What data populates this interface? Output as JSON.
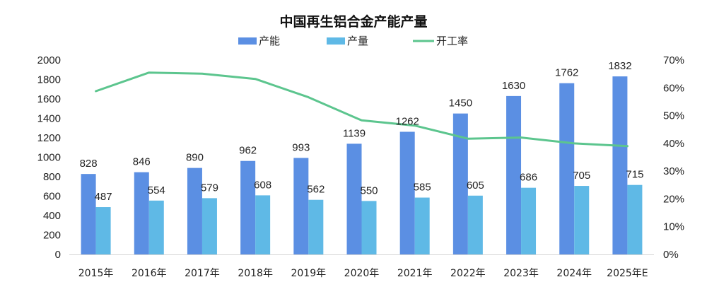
{
  "chart_data": {
    "type": "bar",
    "title": "中国再生铝合金产能产量",
    "categories": [
      "2015年",
      "2016年",
      "2017年",
      "2018年",
      "2019年",
      "2020年",
      "2021年",
      "2022年",
      "2023年",
      "2024年",
      "2025年E"
    ],
    "series": [
      {
        "name": "产能",
        "kind": "bar",
        "axis": "left",
        "color": "#5b8fe3",
        "values": [
          828,
          846,
          890,
          962,
          993,
          1139,
          1262,
          1450,
          1630,
          1762,
          1832
        ]
      },
      {
        "name": "产量",
        "kind": "bar",
        "axis": "left",
        "color": "#5fb9e6",
        "values": [
          487,
          554,
          579,
          608,
          562,
          550,
          585,
          605,
          686,
          705,
          715
        ]
      },
      {
        "name": "开工率",
        "kind": "line",
        "axis": "right",
        "color": "#5cc58e",
        "values": [
          58.8,
          65.5,
          65.1,
          63.2,
          56.6,
          48.3,
          46.4,
          41.7,
          42.1,
          40.0,
          39.0
        ]
      }
    ],
    "y_left": {
      "min": 0,
      "max": 2000,
      "ticks": [
        "0",
        "200",
        "400",
        "600",
        "800",
        "1000",
        "1200",
        "1400",
        "1600",
        "1800",
        "2000"
      ]
    },
    "y_right": {
      "min": 0,
      "max": 70,
      "ticks": [
        "0%",
        "10%",
        "20%",
        "30%",
        "40%",
        "50%",
        "60%",
        "70%"
      ]
    },
    "legend_position": "top-center",
    "grid": false
  }
}
